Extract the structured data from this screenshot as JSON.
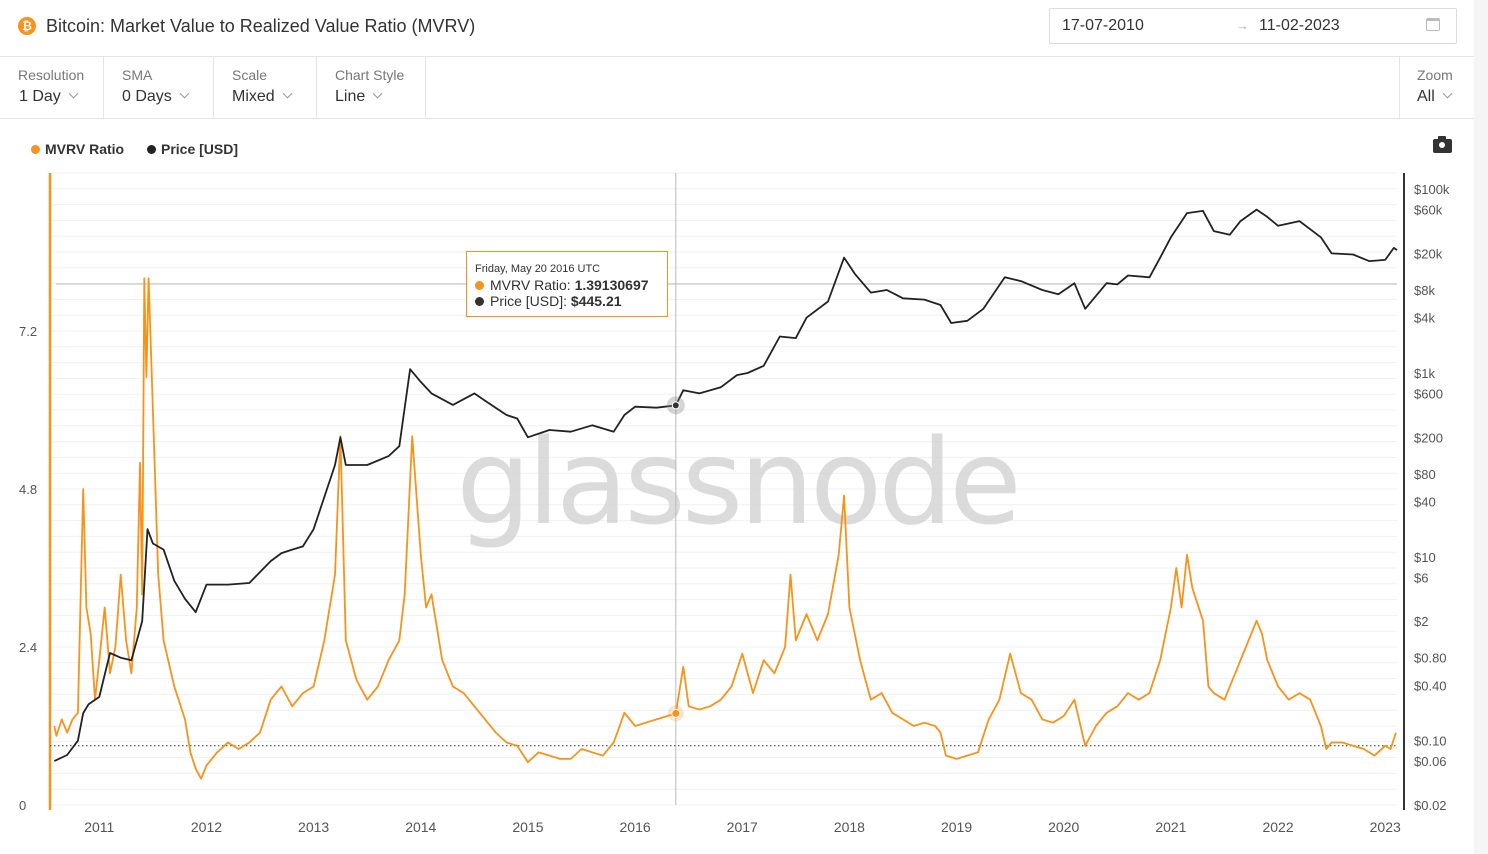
{
  "header": {
    "title": "Bitcoin: Market Value to Realized Value Ratio (MVRV)",
    "date_from": "17-07-2010",
    "date_arrow": "→",
    "date_to": "11-02-2023"
  },
  "toolbar": {
    "resolution_label": "Resolution",
    "resolution_value": "1 Day",
    "sma_label": "SMA",
    "sma_value": "0 Days",
    "scale_label": "Scale",
    "scale_value": "Mixed",
    "style_label": "Chart Style",
    "style_value": "Line",
    "zoom_label": "Zoom",
    "zoom_value": "All"
  },
  "watermark": "glassnode",
  "colors": {
    "mvrv": "#f7931a",
    "price": "#222222",
    "accent": "#f7931a"
  },
  "tooltip": {
    "date": "Friday, May 20 2016 UTC",
    "mvrv_label": "MVRV Ratio:",
    "mvrv_value": "1.39130697",
    "price_label": "Price [USD]:",
    "price_value": "$445.21"
  },
  "chart_data": {
    "type": "line",
    "title": "Bitcoin: Market Value to Realized Value Ratio (MVRV)",
    "x_ticks": [
      "2011",
      "2012",
      "2013",
      "2014",
      "2015",
      "2016",
      "2017",
      "2018",
      "2019",
      "2020",
      "2021",
      "2022",
      "2023"
    ],
    "x_range": [
      2010.54,
      2023.11
    ],
    "y_left": {
      "ticks": [
        0,
        2.4,
        4.8,
        7.2
      ],
      "tick_labels": [
        "0",
        "2.4",
        "4.8",
        "7.2"
      ],
      "range": [
        0,
        9.6
      ]
    },
    "y_right": {
      "scale": "log",
      "tick_values": [
        100000,
        60000,
        20000,
        8000,
        4000,
        1000,
        600,
        200,
        80,
        40,
        10,
        6,
        2,
        0.8,
        0.4,
        0.1,
        0.06,
        0.02
      ],
      "tick_labels": [
        "$100k",
        "$60k",
        "$20k",
        "$8k",
        "$4k",
        "$1k",
        "$600",
        "$200",
        "$80",
        "$40",
        "$10",
        "$6",
        "$2",
        "$0.80",
        "$0.40",
        "$0.10",
        "$0.06",
        "$0.02"
      ],
      "range": [
        0.02,
        150000
      ]
    },
    "reference_line_mvrv": 0.9,
    "legend": [
      {
        "name": "MVRV Ratio",
        "color": "#f7931a"
      },
      {
        "name": "Price [USD]",
        "color": "#222222"
      }
    ],
    "series": [
      {
        "name": "MVRV Ratio",
        "axis": "left",
        "points": [
          [
            2010.58,
            1.2
          ],
          [
            2010.6,
            1.05
          ],
          [
            2010.65,
            1.3
          ],
          [
            2010.7,
            1.1
          ],
          [
            2010.75,
            1.3
          ],
          [
            2010.8,
            1.4
          ],
          [
            2010.85,
            4.8
          ],
          [
            2010.88,
            3.0
          ],
          [
            2010.92,
            2.6
          ],
          [
            2010.96,
            1.6
          ],
          [
            2011.0,
            2.2
          ],
          [
            2011.05,
            3.0
          ],
          [
            2011.1,
            2.0
          ],
          [
            2011.15,
            2.4
          ],
          [
            2011.2,
            3.5
          ],
          [
            2011.25,
            2.5
          ],
          [
            2011.3,
            2.0
          ],
          [
            2011.35,
            3.0
          ],
          [
            2011.38,
            5.2
          ],
          [
            2011.4,
            3.2
          ],
          [
            2011.42,
            8.0
          ],
          [
            2011.44,
            6.5
          ],
          [
            2011.46,
            8.0
          ],
          [
            2011.5,
            6.0
          ],
          [
            2011.55,
            3.5
          ],
          [
            2011.6,
            2.5
          ],
          [
            2011.7,
            1.8
          ],
          [
            2011.8,
            1.3
          ],
          [
            2011.85,
            0.8
          ],
          [
            2011.9,
            0.55
          ],
          [
            2011.95,
            0.4
          ],
          [
            2012.0,
            0.6
          ],
          [
            2012.1,
            0.8
          ],
          [
            2012.2,
            0.95
          ],
          [
            2012.3,
            0.85
          ],
          [
            2012.4,
            0.95
          ],
          [
            2012.5,
            1.1
          ],
          [
            2012.6,
            1.6
          ],
          [
            2012.7,
            1.8
          ],
          [
            2012.8,
            1.5
          ],
          [
            2012.9,
            1.7
          ],
          [
            2013.0,
            1.8
          ],
          [
            2013.1,
            2.5
          ],
          [
            2013.2,
            3.5
          ],
          [
            2013.25,
            5.6
          ],
          [
            2013.3,
            2.5
          ],
          [
            2013.4,
            1.9
          ],
          [
            2013.5,
            1.6
          ],
          [
            2013.6,
            1.8
          ],
          [
            2013.7,
            2.2
          ],
          [
            2013.8,
            2.5
          ],
          [
            2013.85,
            3.2
          ],
          [
            2013.92,
            5.6
          ],
          [
            2014.0,
            3.8
          ],
          [
            2014.05,
            3.0
          ],
          [
            2014.1,
            3.2
          ],
          [
            2014.2,
            2.2
          ],
          [
            2014.3,
            1.8
          ],
          [
            2014.4,
            1.7
          ],
          [
            2014.5,
            1.5
          ],
          [
            2014.6,
            1.3
          ],
          [
            2014.7,
            1.1
          ],
          [
            2014.8,
            0.95
          ],
          [
            2014.9,
            0.9
          ],
          [
            2015.0,
            0.65
          ],
          [
            2015.1,
            0.8
          ],
          [
            2015.2,
            0.75
          ],
          [
            2015.3,
            0.7
          ],
          [
            2015.4,
            0.7
          ],
          [
            2015.5,
            0.85
          ],
          [
            2015.6,
            0.8
          ],
          [
            2015.7,
            0.75
          ],
          [
            2015.8,
            0.95
          ],
          [
            2015.9,
            1.4
          ],
          [
            2016.0,
            1.2
          ],
          [
            2016.1,
            1.25
          ],
          [
            2016.2,
            1.3
          ],
          [
            2016.3,
            1.35
          ],
          [
            2016.38,
            1.39
          ],
          [
            2016.45,
            2.1
          ],
          [
            2016.5,
            1.5
          ],
          [
            2016.6,
            1.45
          ],
          [
            2016.7,
            1.5
          ],
          [
            2016.8,
            1.6
          ],
          [
            2016.9,
            1.8
          ],
          [
            2017.0,
            2.3
          ],
          [
            2017.1,
            1.7
          ],
          [
            2017.2,
            2.2
          ],
          [
            2017.3,
            2.0
          ],
          [
            2017.4,
            2.4
          ],
          [
            2017.45,
            3.5
          ],
          [
            2017.5,
            2.5
          ],
          [
            2017.6,
            2.9
          ],
          [
            2017.7,
            2.5
          ],
          [
            2017.8,
            2.9
          ],
          [
            2017.9,
            3.8
          ],
          [
            2017.95,
            4.7
          ],
          [
            2018.0,
            3.0
          ],
          [
            2018.1,
            2.2
          ],
          [
            2018.2,
            1.6
          ],
          [
            2018.3,
            1.7
          ],
          [
            2018.4,
            1.4
          ],
          [
            2018.5,
            1.3
          ],
          [
            2018.6,
            1.2
          ],
          [
            2018.7,
            1.25
          ],
          [
            2018.8,
            1.2
          ],
          [
            2018.85,
            1.1
          ],
          [
            2018.9,
            0.75
          ],
          [
            2019.0,
            0.7
          ],
          [
            2019.1,
            0.75
          ],
          [
            2019.2,
            0.8
          ],
          [
            2019.3,
            1.3
          ],
          [
            2019.4,
            1.6
          ],
          [
            2019.5,
            2.3
          ],
          [
            2019.6,
            1.7
          ],
          [
            2019.7,
            1.6
          ],
          [
            2019.8,
            1.3
          ],
          [
            2019.9,
            1.25
          ],
          [
            2020.0,
            1.35
          ],
          [
            2020.1,
            1.6
          ],
          [
            2020.2,
            0.9
          ],
          [
            2020.3,
            1.2
          ],
          [
            2020.4,
            1.4
          ],
          [
            2020.5,
            1.5
          ],
          [
            2020.6,
            1.7
          ],
          [
            2020.7,
            1.6
          ],
          [
            2020.8,
            1.7
          ],
          [
            2020.9,
            2.2
          ],
          [
            2021.0,
            3.0
          ],
          [
            2021.05,
            3.6
          ],
          [
            2021.1,
            3.0
          ],
          [
            2021.15,
            3.8
          ],
          [
            2021.2,
            3.3
          ],
          [
            2021.3,
            2.8
          ],
          [
            2021.35,
            1.8
          ],
          [
            2021.4,
            1.7
          ],
          [
            2021.5,
            1.6
          ],
          [
            2021.6,
            2.0
          ],
          [
            2021.7,
            2.4
          ],
          [
            2021.8,
            2.8
          ],
          [
            2021.85,
            2.6
          ],
          [
            2021.9,
            2.2
          ],
          [
            2022.0,
            1.8
          ],
          [
            2022.1,
            1.6
          ],
          [
            2022.2,
            1.7
          ],
          [
            2022.3,
            1.6
          ],
          [
            2022.4,
            1.2
          ],
          [
            2022.45,
            0.85
          ],
          [
            2022.5,
            0.95
          ],
          [
            2022.6,
            0.95
          ],
          [
            2022.7,
            0.9
          ],
          [
            2022.8,
            0.85
          ],
          [
            2022.9,
            0.75
          ],
          [
            2023.0,
            0.9
          ],
          [
            2023.05,
            0.85
          ],
          [
            2023.1,
            1.1
          ]
        ]
      },
      {
        "name": "Price [USD]",
        "axis": "right",
        "points": [
          [
            2010.58,
            0.06
          ],
          [
            2010.7,
            0.07
          ],
          [
            2010.8,
            0.1
          ],
          [
            2010.85,
            0.2
          ],
          [
            2010.9,
            0.25
          ],
          [
            2011.0,
            0.3
          ],
          [
            2011.1,
            0.9
          ],
          [
            2011.2,
            0.8
          ],
          [
            2011.3,
            0.75
          ],
          [
            2011.4,
            2.0
          ],
          [
            2011.45,
            20
          ],
          [
            2011.5,
            14
          ],
          [
            2011.6,
            12
          ],
          [
            2011.7,
            5.5
          ],
          [
            2011.8,
            3.5
          ],
          [
            2011.9,
            2.5
          ],
          [
            2012.0,
            5
          ],
          [
            2012.2,
            5
          ],
          [
            2012.4,
            5.2
          ],
          [
            2012.6,
            9
          ],
          [
            2012.7,
            11
          ],
          [
            2012.8,
            12
          ],
          [
            2012.9,
            13
          ],
          [
            2013.0,
            20
          ],
          [
            2013.2,
            100
          ],
          [
            2013.25,
            200
          ],
          [
            2013.3,
            100
          ],
          [
            2013.5,
            100
          ],
          [
            2013.7,
            125
          ],
          [
            2013.8,
            160
          ],
          [
            2013.9,
            1100
          ],
          [
            2014.0,
            800
          ],
          [
            2014.1,
            600
          ],
          [
            2014.3,
            450
          ],
          [
            2014.5,
            600
          ],
          [
            2014.6,
            500
          ],
          [
            2014.8,
            350
          ],
          [
            2014.9,
            320
          ],
          [
            2015.0,
            200
          ],
          [
            2015.2,
            240
          ],
          [
            2015.4,
            230
          ],
          [
            2015.6,
            270
          ],
          [
            2015.8,
            230
          ],
          [
            2015.9,
            350
          ],
          [
            2016.0,
            430
          ],
          [
            2016.2,
            420
          ],
          [
            2016.38,
            445
          ],
          [
            2016.45,
            650
          ],
          [
            2016.6,
            600
          ],
          [
            2016.8,
            700
          ],
          [
            2016.95,
            950
          ],
          [
            2017.05,
            1000
          ],
          [
            2017.2,
            1200
          ],
          [
            2017.35,
            2500
          ],
          [
            2017.5,
            2400
          ],
          [
            2017.6,
            4000
          ],
          [
            2017.8,
            6000
          ],
          [
            2017.95,
            18000
          ],
          [
            2018.05,
            12000
          ],
          [
            2018.2,
            7500
          ],
          [
            2018.35,
            8000
          ],
          [
            2018.5,
            6500
          ],
          [
            2018.7,
            6300
          ],
          [
            2018.85,
            5500
          ],
          [
            2018.95,
            3500
          ],
          [
            2019.1,
            3700
          ],
          [
            2019.25,
            5000
          ],
          [
            2019.45,
            11000
          ],
          [
            2019.6,
            10000
          ],
          [
            2019.8,
            8000
          ],
          [
            2019.95,
            7200
          ],
          [
            2020.1,
            9500
          ],
          [
            2020.2,
            5000
          ],
          [
            2020.4,
            9500
          ],
          [
            2020.5,
            9200
          ],
          [
            2020.6,
            11500
          ],
          [
            2020.8,
            11000
          ],
          [
            2020.9,
            18000
          ],
          [
            2021.0,
            30000
          ],
          [
            2021.15,
            55000
          ],
          [
            2021.3,
            58000
          ],
          [
            2021.4,
            35000
          ],
          [
            2021.55,
            32000
          ],
          [
            2021.65,
            45000
          ],
          [
            2021.8,
            60000
          ],
          [
            2021.9,
            50000
          ],
          [
            2022.0,
            40000
          ],
          [
            2022.2,
            45000
          ],
          [
            2022.4,
            30000
          ],
          [
            2022.5,
            20000
          ],
          [
            2022.7,
            19500
          ],
          [
            2022.85,
            16500
          ],
          [
            2023.0,
            17000
          ],
          [
            2023.08,
            23000
          ],
          [
            2023.11,
            21800
          ]
        ]
      }
    ],
    "tooltip_point": {
      "x": 2016.38,
      "mvrv": 1.39130697,
      "price": 445.21
    }
  }
}
